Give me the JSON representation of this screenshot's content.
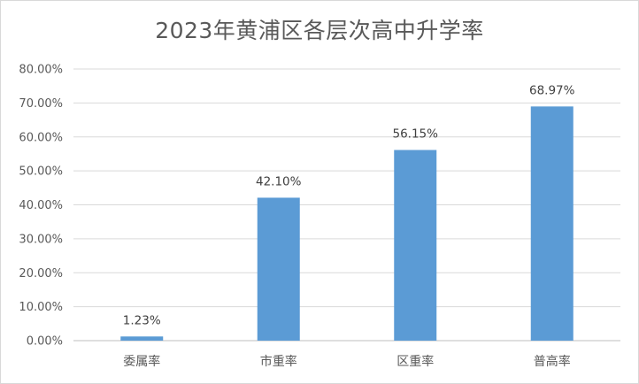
{
  "chart_data": {
    "type": "bar",
    "title": "2023年黄浦区各层次高中升学率",
    "categories": [
      "委属率",
      "市重率",
      "区重率",
      "普高率"
    ],
    "values": [
      1.23,
      42.1,
      56.15,
      68.97
    ],
    "data_labels": [
      "1.23%",
      "42.10%",
      "56.15%",
      "68.97%"
    ],
    "ylim": [
      0,
      80
    ],
    "yticks": [
      0,
      10,
      20,
      30,
      40,
      50,
      60,
      70,
      80
    ],
    "ytick_labels": [
      "0.00%",
      "10.00%",
      "20.00%",
      "30.00%",
      "40.00%",
      "50.00%",
      "60.00%",
      "70.00%",
      "80.00%"
    ],
    "bar_color": "#5b9bd5",
    "grid": true,
    "legend": "none"
  }
}
